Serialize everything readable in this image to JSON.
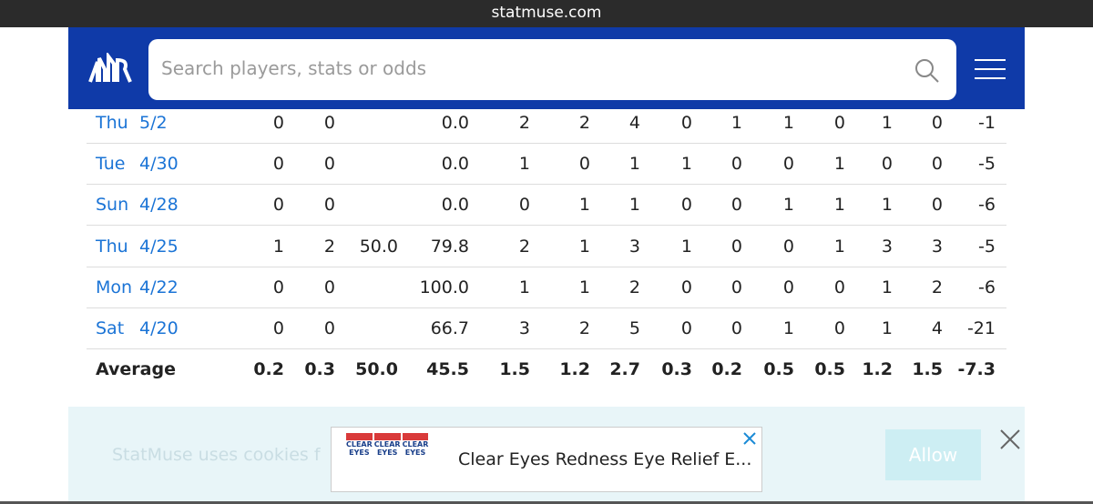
{
  "browser": {
    "url": "statmuse.com"
  },
  "search": {
    "placeholder": "Search players, stats or odds"
  },
  "table": {
    "rows": [
      {
        "day": "Thu",
        "date": "5/2",
        "cells": [
          "0",
          "0",
          null,
          "0.0",
          "2",
          "2",
          "4",
          "0",
          "1",
          "1",
          "0",
          "1",
          "0",
          "-1"
        ]
      },
      {
        "day": "Tue",
        "date": "4/30",
        "cells": [
          "0",
          "0",
          null,
          "0.0",
          "1",
          "0",
          "1",
          "1",
          "0",
          "0",
          "1",
          "0",
          "0",
          "-5"
        ]
      },
      {
        "day": "Sun",
        "date": "4/28",
        "cells": [
          "0",
          "0",
          null,
          "0.0",
          "0",
          "1",
          "1",
          "0",
          "0",
          "1",
          "1",
          "1",
          "0",
          "-6"
        ]
      },
      {
        "day": "Thu",
        "date": "4/25",
        "cells": [
          "1",
          "2",
          "50.0",
          "79.8",
          "2",
          "1",
          "3",
          "1",
          "0",
          "0",
          "1",
          "3",
          "3",
          "-5"
        ]
      },
      {
        "day": "Mon",
        "date": "4/22",
        "cells": [
          "0",
          "0",
          null,
          "100.0",
          "1",
          "1",
          "2",
          "0",
          "0",
          "0",
          "0",
          "1",
          "2",
          "-6"
        ]
      },
      {
        "day": "Sat",
        "date": "4/20",
        "cells": [
          "0",
          "0",
          null,
          "66.7",
          "3",
          "2",
          "5",
          "0",
          "0",
          "1",
          "0",
          "1",
          "4",
          "-21"
        ]
      }
    ],
    "average": {
      "label": "Average",
      "cells": [
        "0.2",
        "0.3",
        "50.0",
        "45.5",
        "1.5",
        "1.2",
        "2.7",
        "0.3",
        "0.2",
        "0.5",
        "0.5",
        "1.2",
        "1.5",
        "-7.3"
      ]
    }
  },
  "cookie_banner": {
    "text": "StatMuse uses cookies f",
    "button": "Allow"
  },
  "ad": {
    "brand": "CLEAR EYES",
    "title": "Clear Eyes Redness Eye Relief E..."
  }
}
